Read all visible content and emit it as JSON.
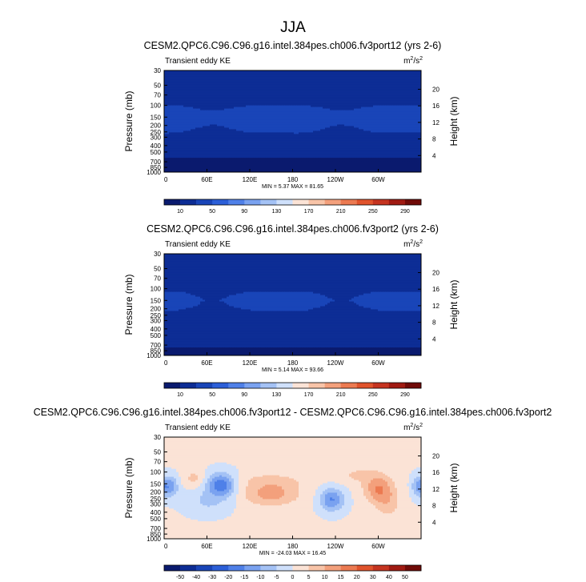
{
  "season": "JJA",
  "chart_data": [
    {
      "type": "heatmap",
      "title": "CESM2.QPC6.C96.C96.g16.intel.384pes.ch006.fv3port12 (yrs 2-6)",
      "left_label": "Transient eddy KE",
      "units": "m²/s²",
      "units_base": "m",
      "units_exp": "2",
      "units_sep": "/s",
      "ylabel": "Pressure (mb)",
      "ylabel_right": "Height (km)",
      "x_ticks": [
        "0",
        "60E",
        "120E",
        "180",
        "120W",
        "60W"
      ],
      "x_tick_positions_deg": [
        0,
        60,
        120,
        180,
        240,
        300
      ],
      "xlim": [
        0,
        360
      ],
      "y_ticks": [
        "30",
        "50",
        "70",
        "100",
        "150",
        "200",
        "250",
        "300",
        "400",
        "500",
        "700",
        "850",
        "1000"
      ],
      "y_tick_values_mb": [
        30,
        50,
        70,
        100,
        150,
        200,
        250,
        300,
        400,
        500,
        700,
        850,
        1000
      ],
      "ylim_mb": [
        30,
        1000
      ],
      "height_ticks_km": [
        "20",
        "16",
        "12",
        "8",
        "4"
      ],
      "height_tick_values_km": [
        20,
        16,
        12,
        8,
        4
      ],
      "stats": "MIN =  5.37  MAX =  81.65",
      "min": 5.37,
      "max": 81.65,
      "levels": [
        10,
        30,
        50,
        70,
        90,
        110,
        130,
        150,
        170,
        190,
        210,
        230,
        250,
        270,
        290
      ],
      "colorbar_labels": [
        "10",
        "50",
        "90",
        "130",
        "170",
        "210",
        "250",
        "290"
      ],
      "colorbar_label_values": [
        10,
        50,
        90,
        130,
        170,
        210,
        250,
        290
      ],
      "colors": [
        "#0a1a6e",
        "#0d2d95",
        "#1945b8",
        "#2c5fd8",
        "#4f80e8",
        "#7aa2f0",
        "#a4c2f5",
        "#cfe0fb",
        "#fbe3d6",
        "#f8c4a8",
        "#f3a07c",
        "#ec7a51",
        "#e0532c",
        "#c53420",
        "#a01a12",
        "#700b08"
      ],
      "field_profile": {
        "pressure_mb": [
          30,
          50,
          70,
          100,
          130,
          150,
          180,
          200,
          250,
          300,
          400,
          500,
          700,
          850,
          1000
        ],
        "zonal_mean_ke": [
          22,
          14,
          17,
          28,
          38,
          44,
          40,
          35,
          29,
          25,
          19,
          14,
          8,
          5,
          5
        ]
      }
    },
    {
      "type": "heatmap",
      "title": "CESM2.QPC6.C96.C96.g16.intel.384pes.ch006.fv3port2 (yrs 2-6)",
      "left_label": "Transient eddy KE",
      "units": "m²/s²",
      "units_base": "m",
      "units_exp": "2",
      "units_sep": "/s",
      "ylabel": "Pressure (mb)",
      "ylabel_right": "Height (km)",
      "x_ticks": [
        "0",
        "60E",
        "120E",
        "180",
        "120W",
        "60W"
      ],
      "x_tick_positions_deg": [
        0,
        60,
        120,
        180,
        240,
        300
      ],
      "xlim": [
        0,
        360
      ],
      "y_ticks": [
        "30",
        "50",
        "70",
        "100",
        "150",
        "200",
        "250",
        "300",
        "400",
        "500",
        "700",
        "850",
        "1000"
      ],
      "y_tick_values_mb": [
        30,
        50,
        70,
        100,
        150,
        200,
        250,
        300,
        400,
        500,
        700,
        850,
        1000
      ],
      "ylim_mb": [
        30,
        1000
      ],
      "height_ticks_km": [
        "20",
        "16",
        "12",
        "8",
        "4"
      ],
      "height_tick_values_km": [
        20,
        16,
        12,
        8,
        4
      ],
      "stats": "MIN =  5.14  MAX =  93.66",
      "min": 5.14,
      "max": 93.66,
      "levels": [
        10,
        30,
        50,
        70,
        90,
        110,
        130,
        150,
        170,
        190,
        210,
        230,
        250,
        270,
        290
      ],
      "colorbar_labels": [
        "10",
        "50",
        "90",
        "130",
        "170",
        "210",
        "250",
        "290"
      ],
      "colorbar_label_values": [
        10,
        50,
        90,
        130,
        170,
        210,
        250,
        290
      ],
      "colors": [
        "#0a1a6e",
        "#0d2d95",
        "#1945b8",
        "#2c5fd8",
        "#4f80e8",
        "#7aa2f0",
        "#a4c2f5",
        "#cfe0fb",
        "#fbe3d6",
        "#f8c4a8",
        "#f3a07c",
        "#ec7a51",
        "#e0532c",
        "#c53420",
        "#a01a12",
        "#700b08"
      ],
      "field_profile": {
        "pressure_mb": [
          30,
          50,
          70,
          100,
          130,
          150,
          180,
          200,
          250,
          300,
          400,
          500,
          700,
          850,
          1000
        ],
        "zonal_mean_ke": [
          14,
          14,
          18,
          25,
          33,
          36,
          33,
          29,
          25,
          21,
          17,
          14,
          11,
          9,
          9
        ]
      }
    },
    {
      "type": "heatmap",
      "title": "CESM2.QPC6.C96.C96.g16.intel.384pes.ch006.fv3port12 - CESM2.QPC6.C96.C96.g16.intel.384pes.ch006.fv3port2",
      "left_label": "Transient eddy KE",
      "units": "m²/s²",
      "units_base": "m",
      "units_exp": "2",
      "units_sep": "/s",
      "ylabel": "Pressure (mb)",
      "ylabel_right": "Height (km)",
      "x_ticks": [
        "0",
        "60E",
        "120E",
        "180",
        "120W",
        "60W"
      ],
      "x_tick_positions_deg": [
        0,
        60,
        120,
        180,
        240,
        300
      ],
      "xlim": [
        0,
        360
      ],
      "y_ticks": [
        "30",
        "50",
        "70",
        "100",
        "150",
        "200",
        "250",
        "300",
        "400",
        "500",
        "700",
        "850",
        "1000"
      ],
      "y_tick_values_mb": [
        30,
        50,
        70,
        100,
        150,
        200,
        250,
        300,
        400,
        500,
        700,
        850,
        1000
      ],
      "ylim_mb": [
        30,
        1000
      ],
      "height_ticks_km": [
        "20",
        "16",
        "12",
        "8",
        "4"
      ],
      "height_tick_values_km": [
        20,
        16,
        12,
        8,
        4
      ],
      "stats": "MIN = -24.03  MAX =  16.45",
      "min": -24.03,
      "max": 16.45,
      "levels": [
        -50,
        -40,
        -30,
        -20,
        -15,
        -10,
        -5,
        0,
        5,
        10,
        15,
        20,
        30,
        40,
        50
      ],
      "colorbar_labels": [
        "-50",
        "-40",
        "-30",
        "-20",
        "-15",
        "-10",
        "-5",
        "0",
        "5",
        "10",
        "15",
        "20",
        "30",
        "40",
        "50"
      ],
      "colorbar_label_values": [
        -50,
        -40,
        -30,
        -20,
        -15,
        -10,
        -5,
        0,
        5,
        10,
        15,
        20,
        30,
        40,
        50
      ],
      "colors": [
        "#0a1a6e",
        "#0d2d95",
        "#1945b8",
        "#2c5fd8",
        "#4f80e8",
        "#7aa2f0",
        "#a4c2f5",
        "#cfe0fb",
        "#fbe3d6",
        "#f8c4a8",
        "#f3a07c",
        "#ec7a51",
        "#e0532c",
        "#c53420",
        "#a01a12",
        "#700b08"
      ],
      "anomalies": [
        {
          "lon": 8,
          "p_mb": 165,
          "amp": -14,
          "lon_width": 8,
          "p_width": 0.25
        },
        {
          "lon": 42,
          "p_mb": 125,
          "amp": 6,
          "lon_width": 10,
          "p_width": 0.22
        },
        {
          "lon": 80,
          "p_mb": 155,
          "amp": -20,
          "lon_width": 14,
          "p_width": 0.28
        },
        {
          "lon": 60,
          "p_mb": 280,
          "amp": -6,
          "lon_width": 22,
          "p_width": 0.3
        },
        {
          "lon": 150,
          "p_mb": 210,
          "amp": 12,
          "lon_width": 28,
          "p_width": 0.3
        },
        {
          "lon": 150,
          "p_mb": 130,
          "amp": 4,
          "lon_width": 40,
          "p_width": 0.18
        },
        {
          "lon": 160,
          "p_mb": 700,
          "amp": 2,
          "lon_width": 30,
          "p_width": 0.15
        },
        {
          "lon": 235,
          "p_mb": 260,
          "amp": -16,
          "lon_width": 12,
          "p_width": 0.28
        },
        {
          "lon": 270,
          "p_mb": 110,
          "amp": 5,
          "lon_width": 20,
          "p_width": 0.22
        },
        {
          "lon": 300,
          "p_mb": 180,
          "amp": 14,
          "lon_width": 14,
          "p_width": 0.35
        },
        {
          "lon": 315,
          "p_mb": 300,
          "amp": 6,
          "lon_width": 12,
          "p_width": 0.4
        },
        {
          "lon": 355,
          "p_mb": 165,
          "amp": -10,
          "lon_width": 6,
          "p_width": 0.25
        }
      ]
    }
  ]
}
